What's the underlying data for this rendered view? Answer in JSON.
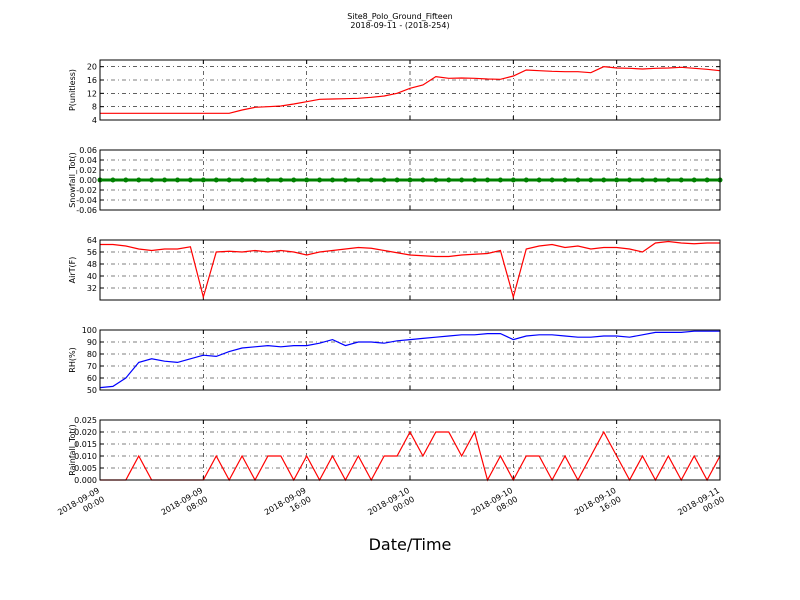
{
  "title": "Site8_Polo_Ground_Fifteen",
  "subtitle": "2018-09-11 - (2018-254)",
  "xlabel": "Date/Time",
  "xlim": [
    "2018-09-09 00:00",
    "2018-09-11 00:00"
  ],
  "xticks": [
    "2018-09-09 00:00",
    "2018-09-09 08:00",
    "2018-09-09 16:00",
    "2018-09-10 00:00",
    "2018-09-10 08:00",
    "2018-09-10 16:00",
    "2018-09-11 00:00"
  ],
  "x": [
    "2018-09-09 00:00",
    "2018-09-09 01:00",
    "2018-09-09 02:00",
    "2018-09-09 03:00",
    "2018-09-09 04:00",
    "2018-09-09 05:00",
    "2018-09-09 06:00",
    "2018-09-09 07:00",
    "2018-09-09 08:00",
    "2018-09-09 09:00",
    "2018-09-09 10:00",
    "2018-09-09 11:00",
    "2018-09-09 12:00",
    "2018-09-09 13:00",
    "2018-09-09 14:00",
    "2018-09-09 15:00",
    "2018-09-09 16:00",
    "2018-09-09 17:00",
    "2018-09-09 18:00",
    "2018-09-09 19:00",
    "2018-09-09 20:00",
    "2018-09-09 21:00",
    "2018-09-09 22:00",
    "2018-09-09 23:00",
    "2018-09-10 00:00",
    "2018-09-10 01:00",
    "2018-09-10 02:00",
    "2018-09-10 03:00",
    "2018-09-10 04:00",
    "2018-09-10 05:00",
    "2018-09-10 06:00",
    "2018-09-10 07:00",
    "2018-09-10 08:00",
    "2018-09-10 09:00",
    "2018-09-10 10:00",
    "2018-09-10 11:00",
    "2018-09-10 12:00",
    "2018-09-10 13:00",
    "2018-09-10 14:00",
    "2018-09-10 15:00",
    "2018-09-10 16:00",
    "2018-09-10 17:00",
    "2018-09-10 18:00",
    "2018-09-10 19:00",
    "2018-09-10 20:00",
    "2018-09-10 21:00",
    "2018-09-10 22:00",
    "2018-09-10 23:00",
    "2018-09-11 00:00"
  ],
  "chart_data": [
    {
      "type": "line",
      "ylabel": "P(unitless)",
      "color": "#ff0000",
      "grid": true,
      "ylim": [
        4,
        22
      ],
      "yticks": [
        4,
        8,
        12,
        16,
        20
      ],
      "values": [
        6,
        6,
        6,
        6,
        6,
        6,
        6,
        6,
        6,
        6,
        6,
        7,
        7.8,
        8,
        8.2,
        8.8,
        9.5,
        10.2,
        10.3,
        10.4,
        10.5,
        10.8,
        11.2,
        12,
        13.5,
        14.5,
        17,
        16.5,
        16.6,
        16.5,
        16.3,
        16.2,
        17.2,
        19,
        18.8,
        18.6,
        18.5,
        18.5,
        18.2,
        20,
        19.6,
        19.5,
        19.3,
        19.5,
        19.6,
        19.8,
        19.5,
        19.2,
        18.8
      ]
    },
    {
      "type": "line",
      "ylabel": "Snowfall_Tot()",
      "color": "#008000",
      "marker": true,
      "grid": true,
      "ylim": [
        -0.06,
        0.06
      ],
      "yticks": [
        -0.06,
        -0.04,
        -0.02,
        {
          "value": 0,
          "label": "0.00"
        },
        0.02,
        0.04,
        0.06
      ],
      "values": [
        0,
        0,
        0,
        0,
        0,
        0,
        0,
        0,
        0,
        0,
        0,
        0,
        0,
        0,
        0,
        0,
        0,
        0,
        0,
        0,
        0,
        0,
        0,
        0,
        0,
        0,
        0,
        0,
        0,
        0,
        0,
        0,
        0,
        0,
        0,
        0,
        0,
        0,
        0,
        0,
        0,
        0,
        0,
        0,
        0,
        0,
        0,
        0,
        0
      ]
    },
    {
      "type": "line",
      "ylabel": "AirT(F)",
      "color": "#ff0000",
      "grid": true,
      "ylim": [
        24,
        64
      ],
      "yticks": [
        32,
        40,
        48,
        56,
        64
      ],
      "values": [
        61,
        61,
        60,
        58,
        57,
        58,
        58,
        59.5,
        26,
        56,
        56.5,
        56,
        57,
        56,
        57,
        56,
        54,
        56,
        57,
        58,
        59,
        58.5,
        57,
        55.5,
        54,
        53.5,
        53,
        53,
        54,
        54.5,
        55,
        57,
        26,
        58,
        60,
        61,
        59,
        60,
        58,
        59,
        59,
        58,
        56,
        62,
        63,
        62,
        61.5,
        62,
        62
      ]
    },
    {
      "type": "line",
      "ylabel": "RH(%)",
      "color": "#0000ff",
      "grid": true,
      "ylim": [
        50,
        100
      ],
      "yticks": [
        50,
        60,
        70,
        80,
        90,
        100
      ],
      "values": [
        52,
        53,
        60,
        73,
        76,
        74,
        73,
        76,
        79,
        78,
        82,
        85,
        86,
        87,
        86,
        87,
        87,
        89,
        92,
        87,
        90,
        90,
        89,
        91,
        92,
        93,
        94,
        95,
        96,
        96,
        97,
        97,
        92,
        95,
        96,
        96,
        95,
        94,
        94,
        95,
        95,
        94,
        96,
        98,
        98,
        98,
        99,
        99,
        99
      ]
    },
    {
      "type": "line",
      "ylabel": "Rainfall_Tot()",
      "color": "#ff0000",
      "grid": true,
      "ylim": [
        0,
        0.025
      ],
      "yticks": [
        {
          "value": 0,
          "label": "0.000"
        },
        {
          "value": 0.005,
          "label": "0.005"
        },
        {
          "value": 0.01,
          "label": "0.010"
        },
        {
          "value": 0.015,
          "label": "0.015"
        },
        {
          "value": 0.02,
          "label": "0.020"
        },
        {
          "value": 0.025,
          "label": "0.025"
        }
      ],
      "values": [
        0,
        0,
        0,
        0.01,
        0,
        0,
        0,
        0,
        0,
        0.01,
        0,
        0.01,
        0,
        0.01,
        0.01,
        0,
        0.01,
        0,
        0.01,
        0,
        0.01,
        0,
        0.01,
        0.01,
        0.02,
        0.01,
        0.02,
        0.02,
        0.01,
        0.02,
        0,
        0.01,
        0,
        0.01,
        0.01,
        0,
        0.01,
        0,
        0.01,
        0.02,
        0.01,
        0,
        0.01,
        0,
        0.01,
        0,
        0.01,
        0,
        0.01
      ]
    }
  ]
}
